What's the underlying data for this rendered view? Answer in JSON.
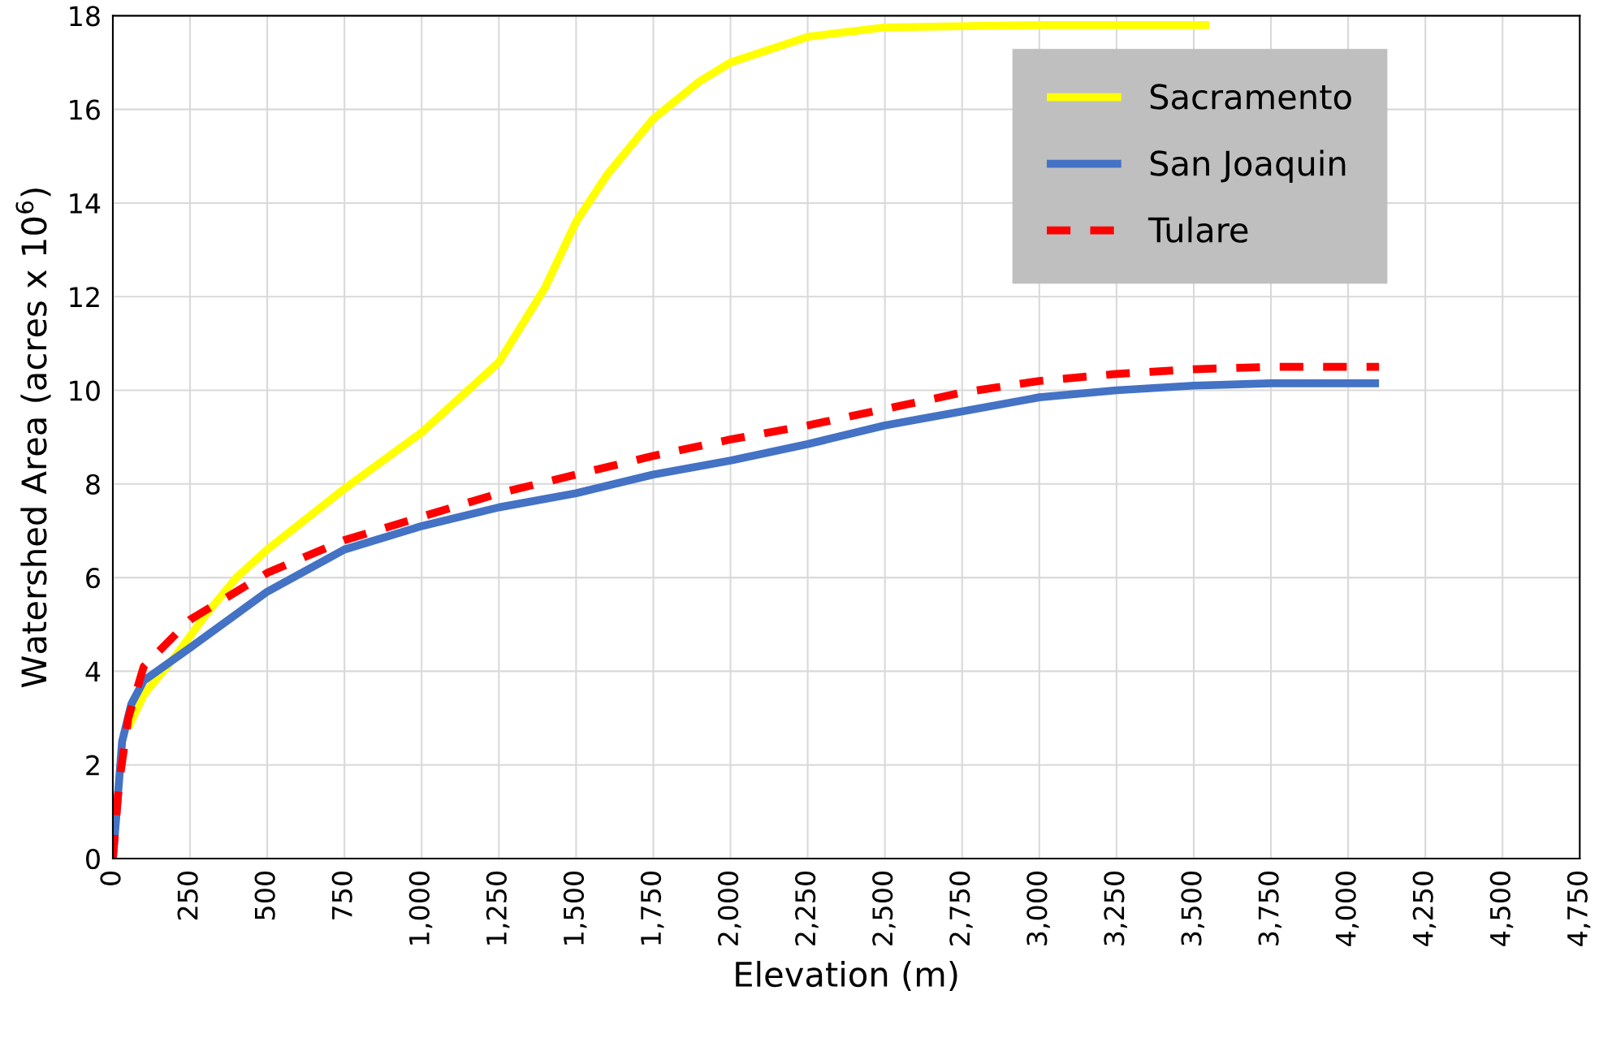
{
  "chart_data": {
    "type": "line",
    "xlabel": "Elevation (m)",
    "ylabel": "Watershed Area (acres x 10$^{6}$)",
    "xlim": [
      0,
      4750
    ],
    "ylim": [
      0,
      18
    ],
    "xticks": [
      0,
      250,
      500,
      750,
      {
        "value": 1000,
        "label": "1,000"
      },
      {
        "value": 1250,
        "label": "1,250"
      },
      {
        "value": 1500,
        "label": "1,500"
      },
      {
        "value": 1750,
        "label": "1,750"
      },
      {
        "value": 2000,
        "label": "2,000"
      },
      {
        "value": 2250,
        "label": "2,250"
      },
      {
        "value": 2500,
        "label": "2,500"
      },
      {
        "value": 2750,
        "label": "2,750"
      },
      {
        "value": 3000,
        "label": "3,000"
      },
      {
        "value": 3250,
        "label": "3,250"
      },
      {
        "value": 3500,
        "label": "3,500"
      },
      {
        "value": 3750,
        "label": "3,750"
      },
      {
        "value": 4000,
        "label": "4,000"
      },
      {
        "value": 4250,
        "label": "4,250"
      },
      {
        "value": 4500,
        "label": "4,500"
      },
      {
        "value": 4750,
        "label": "4,750"
      }
    ],
    "yticks": [
      0,
      2,
      4,
      6,
      8,
      10,
      12,
      14,
      16,
      18
    ],
    "grid": true,
    "legend": "top right",
    "marker": "none",
    "series": [
      {
        "name": "Sacramento",
        "color": "#ffff00",
        "line_style": "solid",
        "x": [
          50,
          100,
          200,
          300,
          400,
          500,
          750,
          1000,
          1250,
          1400,
          1500,
          1600,
          1750,
          1900,
          2000,
          2250,
          2500,
          3000,
          3550
        ],
        "values": [
          2.8,
          3.5,
          4.3,
          5.2,
          6.0,
          6.6,
          7.9,
          9.1,
          10.6,
          12.2,
          13.6,
          14.6,
          15.8,
          16.6,
          17.0,
          17.55,
          17.75,
          17.8,
          17.8
        ]
      },
      {
        "name": "San Joaquin",
        "color": "#4472c4",
        "line_style": "solid",
        "x": [
          0,
          10,
          30,
          60,
          100,
          250,
          500,
          750,
          1000,
          1250,
          1500,
          1750,
          2000,
          2250,
          2500,
          2750,
          3000,
          3250,
          3500,
          3750,
          4100
        ],
        "values": [
          0,
          0.8,
          2.5,
          3.3,
          3.8,
          4.5,
          5.7,
          6.6,
          7.1,
          7.5,
          7.8,
          8.2,
          8.5,
          8.85,
          9.25,
          9.55,
          9.85,
          10.0,
          10.1,
          10.15,
          10.15
        ]
      },
      {
        "name": "Tulare",
        "color": "#ff0000",
        "line_style": "dashed",
        "x": [
          0,
          20,
          50,
          100,
          250,
          500,
          750,
          1000,
          1250,
          1500,
          1750,
          2000,
          2250,
          2500,
          2750,
          3000,
          3250,
          3500,
          3750,
          4100
        ],
        "values": [
          0,
          1.6,
          3.0,
          4.1,
          5.1,
          6.1,
          6.8,
          7.3,
          7.8,
          8.2,
          8.6,
          8.95,
          9.25,
          9.6,
          9.95,
          10.2,
          10.35,
          10.45,
          10.5,
          10.5
        ]
      }
    ]
  }
}
